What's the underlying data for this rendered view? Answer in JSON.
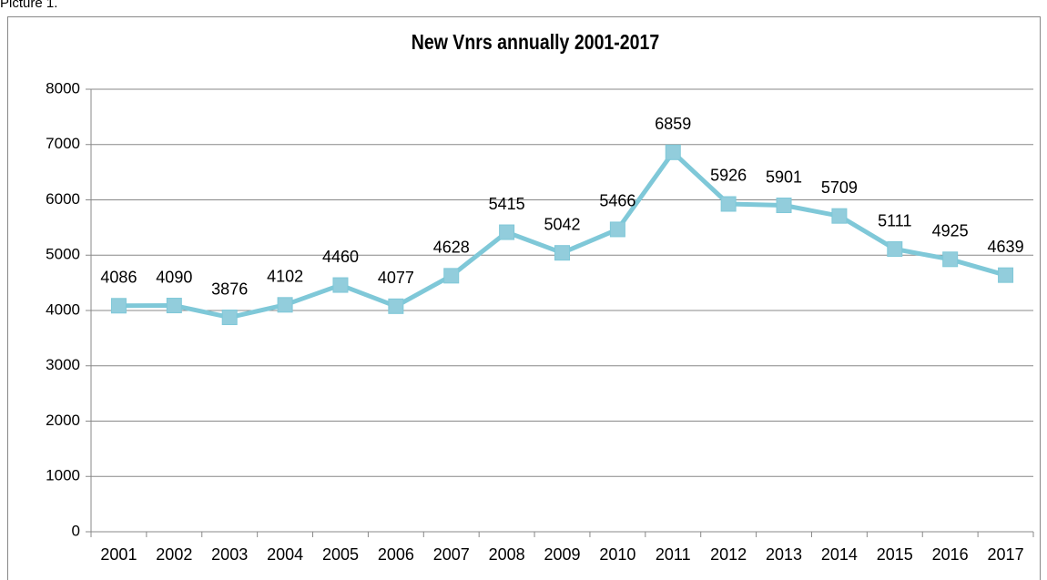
{
  "caption": "Picture 1.",
  "chart_data": {
    "type": "line",
    "title": "New Vnrs annually 2001-2017",
    "categories": [
      "2001",
      "2002",
      "2003",
      "2004",
      "2005",
      "2006",
      "2007",
      "2008",
      "2009",
      "2010",
      "2011",
      "2012",
      "2013",
      "2014",
      "2015",
      "2016",
      "2017"
    ],
    "series": [
      {
        "name": "New Vnrs",
        "color": "#7fc8d8",
        "values": [
          4086,
          4090,
          3876,
          4102,
          4460,
          4077,
          4628,
          5415,
          5042,
          5466,
          6859,
          5926,
          5901,
          5709,
          5111,
          4925,
          4639
        ]
      }
    ],
    "ylim": [
      0,
      8000
    ],
    "yticks": [
      0,
      1000,
      2000,
      3000,
      4000,
      5000,
      6000,
      7000,
      8000
    ],
    "grid": true
  }
}
